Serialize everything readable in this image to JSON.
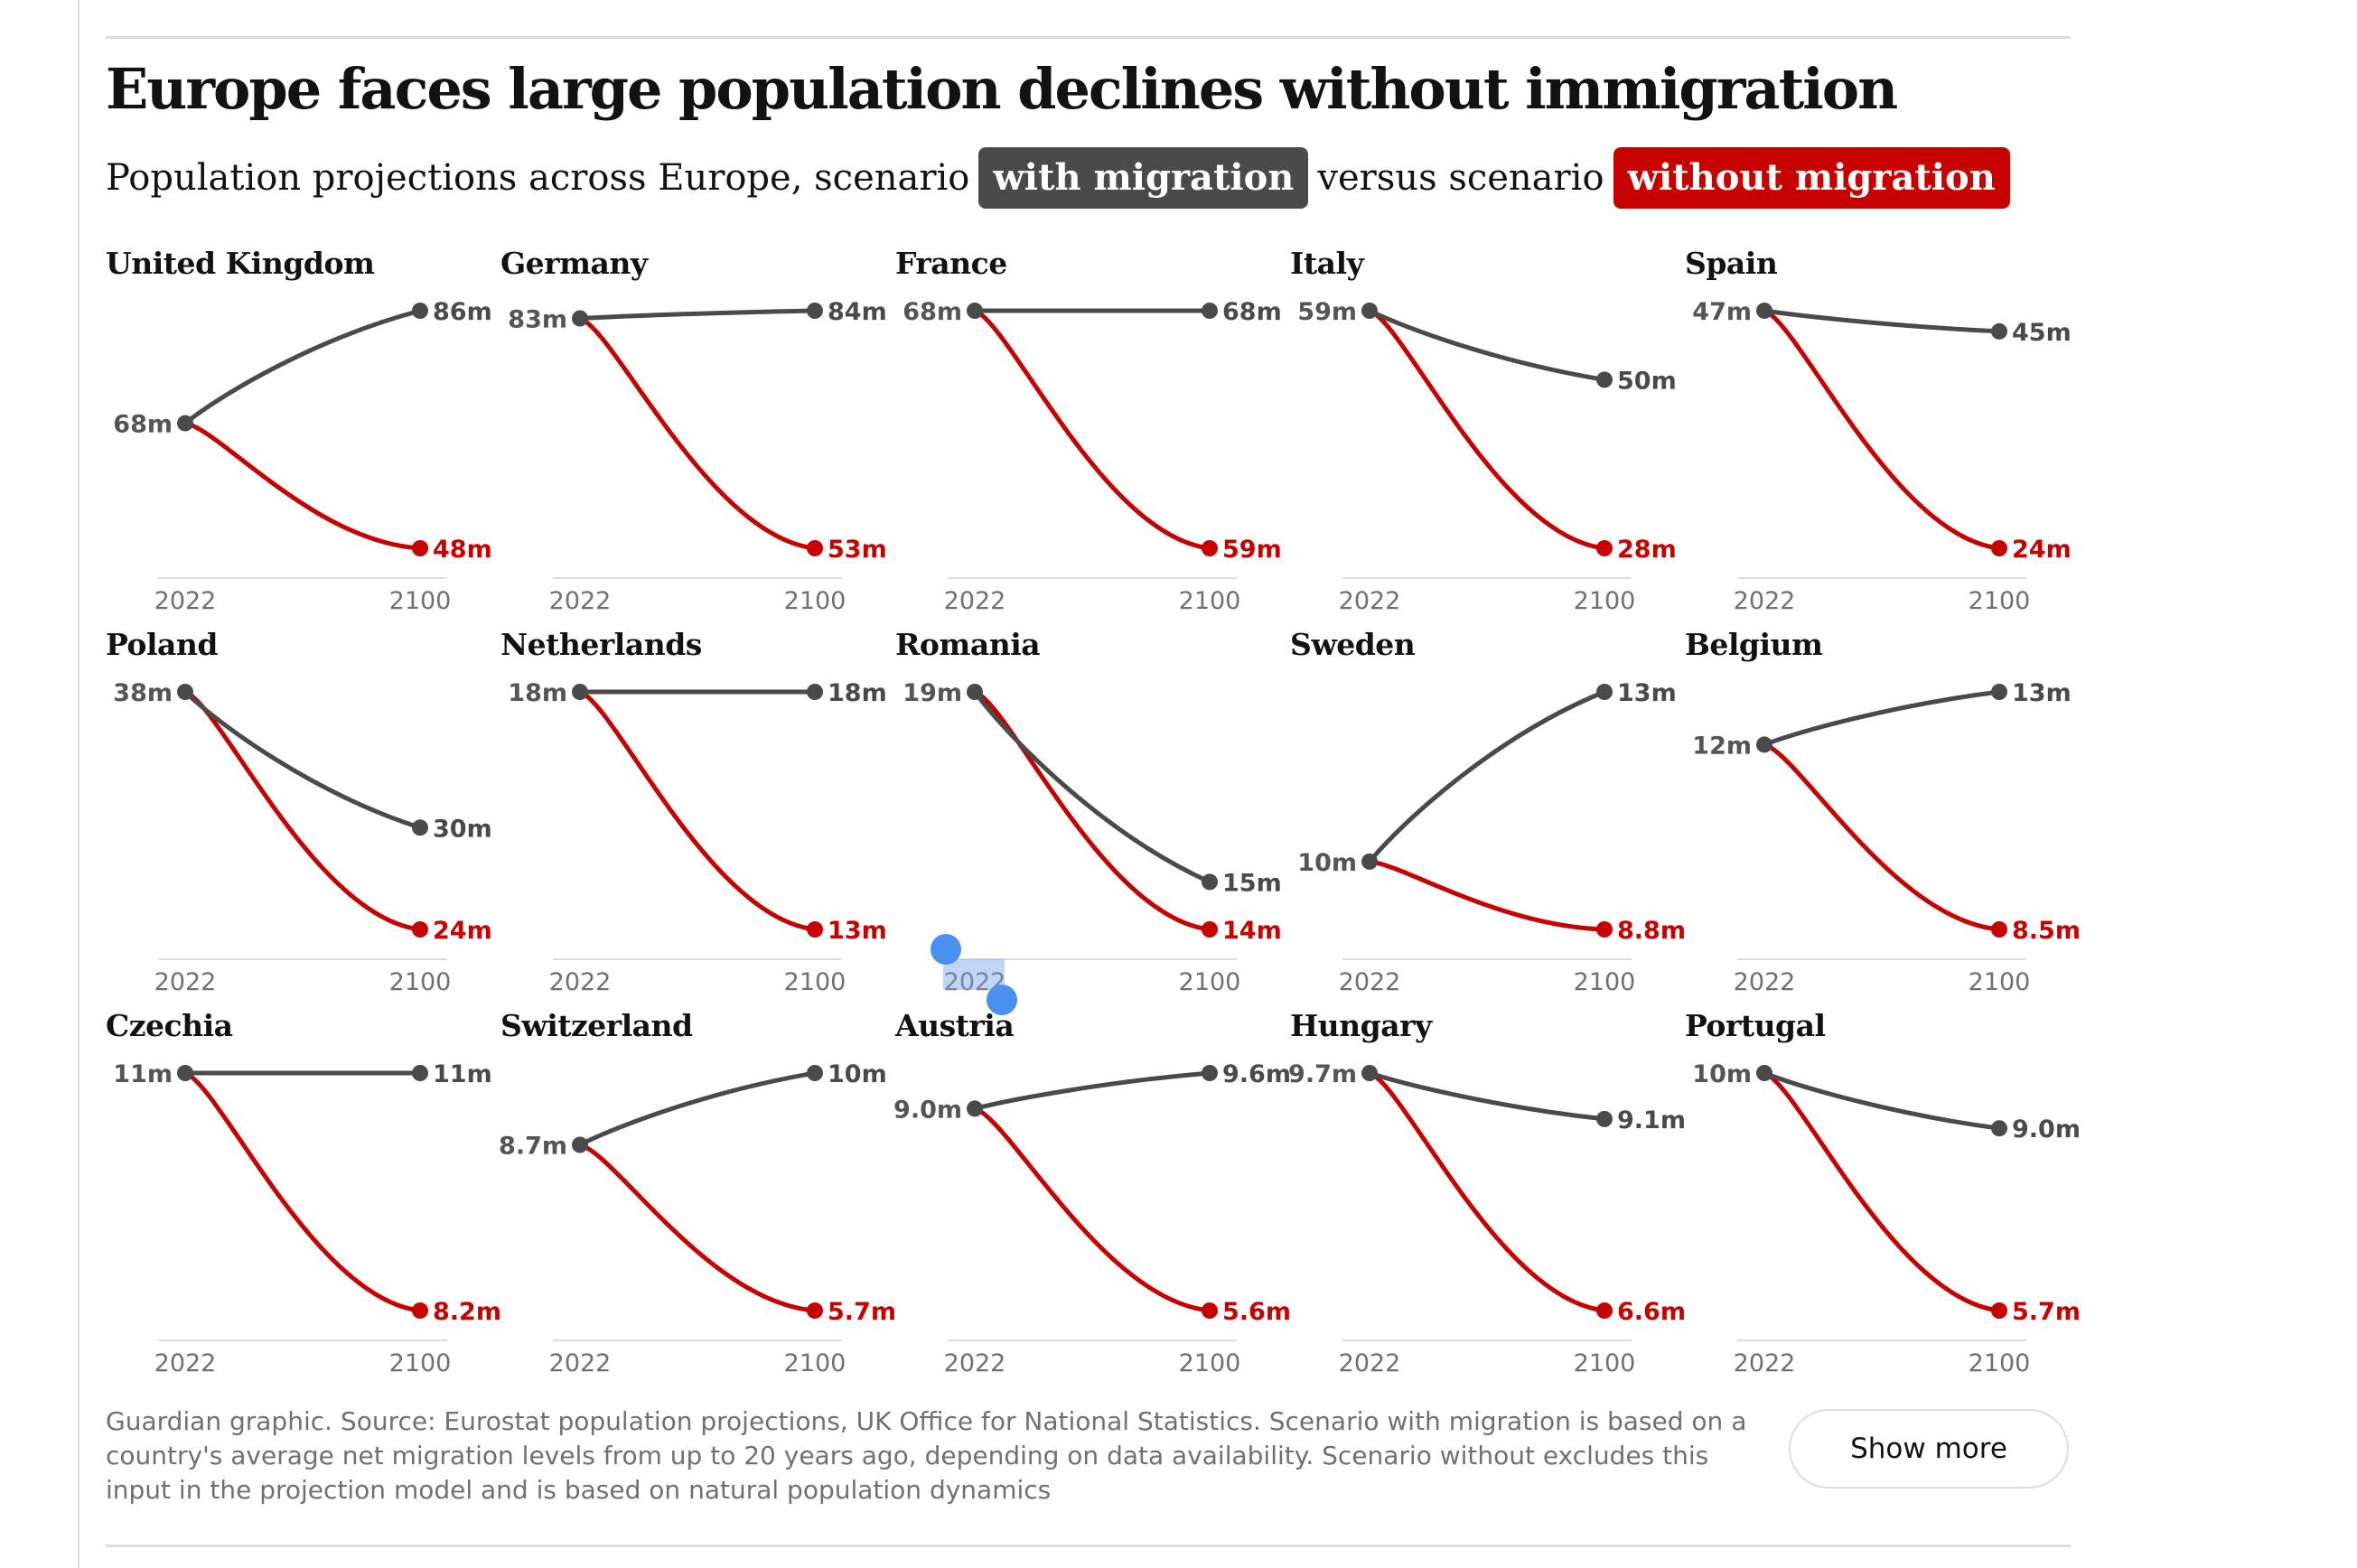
{
  "header": {
    "title": "Europe faces large population declines without immigration",
    "subtitle_prefix": "Population projections across Europe, scenario",
    "with_label": "with migration",
    "subtitle_mid": "versus scenario",
    "without_label": "without migration"
  },
  "colors": {
    "with": "#4a4a4a",
    "without": "#c70000",
    "axis": "#dcdcdc",
    "text_muted": "#707070"
  },
  "footer": {
    "note": "Guardian graphic. Source: Eurostat population projections, UK Office for National Statistics. Scenario with migration is based on a country's average net migration levels from up to 20 years ago, depending on data availability. Scenario without excludes this input in the projection model and is based on natural population dynamics",
    "show_more": "Show more"
  },
  "selection": {
    "selected_text": "2022"
  },
  "chart_data": [
    {
      "type": "line",
      "title": "United Kingdom",
      "x": [
        "2022",
        "2100"
      ],
      "series": [
        {
          "name": "with migration",
          "start": 68,
          "end": 86,
          "start_label": "68m",
          "end_label": "86m"
        },
        {
          "name": "without migration",
          "start": 68,
          "end": 48,
          "start_label": "68m",
          "end_label": "48m"
        }
      ]
    },
    {
      "type": "line",
      "title": "Germany",
      "x": [
        "2022",
        "2100"
      ],
      "series": [
        {
          "name": "with migration",
          "start": 83,
          "end": 84,
          "start_label": "83m",
          "end_label": "84m"
        },
        {
          "name": "without migration",
          "start": 83,
          "end": 53,
          "start_label": "83m",
          "end_label": "53m"
        }
      ]
    },
    {
      "type": "line",
      "title": "France",
      "x": [
        "2022",
        "2100"
      ],
      "series": [
        {
          "name": "with migration",
          "start": 68,
          "end": 68,
          "start_label": "68m",
          "end_label": "68m"
        },
        {
          "name": "without migration",
          "start": 68,
          "end": 59,
          "start_label": "68m",
          "end_label": "59m"
        }
      ]
    },
    {
      "type": "line",
      "title": "Italy",
      "x": [
        "2022",
        "2100"
      ],
      "series": [
        {
          "name": "with migration",
          "start": 59,
          "end": 50,
          "start_label": "59m",
          "end_label": "50m"
        },
        {
          "name": "without migration",
          "start": 59,
          "end": 28,
          "start_label": "59m",
          "end_label": "28m"
        }
      ]
    },
    {
      "type": "line",
      "title": "Spain",
      "x": [
        "2022",
        "2100"
      ],
      "series": [
        {
          "name": "with migration",
          "start": 47,
          "end": 45,
          "start_label": "47m",
          "end_label": "45m"
        },
        {
          "name": "without migration",
          "start": 47,
          "end": 24,
          "start_label": "47m",
          "end_label": "24m"
        }
      ]
    },
    {
      "type": "line",
      "title": "Poland",
      "x": [
        "2022",
        "2100"
      ],
      "series": [
        {
          "name": "with migration",
          "start": 38,
          "end": 30,
          "start_label": "38m",
          "end_label": "30m"
        },
        {
          "name": "without migration",
          "start": 38,
          "end": 24,
          "start_label": "38m",
          "end_label": "24m"
        }
      ]
    },
    {
      "type": "line",
      "title": "Netherlands",
      "x": [
        "2022",
        "2100"
      ],
      "series": [
        {
          "name": "with migration",
          "start": 18,
          "end": 18,
          "start_label": "18m",
          "end_label": "18m"
        },
        {
          "name": "without migration",
          "start": 18,
          "end": 13,
          "start_label": "18m",
          "end_label": "13m"
        }
      ]
    },
    {
      "type": "line",
      "title": "Romania",
      "x": [
        "2022",
        "2100"
      ],
      "series": [
        {
          "name": "with migration",
          "start": 19,
          "end": 15,
          "start_label": "19m",
          "end_label": "15m"
        },
        {
          "name": "without migration",
          "start": 19,
          "end": 14,
          "start_label": "19m",
          "end_label": "14m"
        }
      ]
    },
    {
      "type": "line",
      "title": "Sweden",
      "x": [
        "2022",
        "2100"
      ],
      "series": [
        {
          "name": "with migration",
          "start": 10,
          "end": 13,
          "start_label": "10m",
          "end_label": "13m"
        },
        {
          "name": "without migration",
          "start": 10,
          "end": 8.8,
          "start_label": "10m",
          "end_label": "8.8m"
        }
      ]
    },
    {
      "type": "line",
      "title": "Belgium",
      "x": [
        "2022",
        "2100"
      ],
      "series": [
        {
          "name": "with migration",
          "start": 12,
          "end": 13,
          "start_label": "12m",
          "end_label": "13m"
        },
        {
          "name": "without migration",
          "start": 12,
          "end": 8.5,
          "start_label": "12m",
          "end_label": "8.5m"
        }
      ]
    },
    {
      "type": "line",
      "title": "Czechia",
      "x": [
        "2022",
        "2100"
      ],
      "series": [
        {
          "name": "with migration",
          "start": 11,
          "end": 11,
          "start_label": "11m",
          "end_label": "11m"
        },
        {
          "name": "without migration",
          "start": 11,
          "end": 8.2,
          "start_label": "11m",
          "end_label": "8.2m"
        }
      ]
    },
    {
      "type": "line",
      "title": "Switzerland",
      "x": [
        "2022",
        "2100"
      ],
      "series": [
        {
          "name": "with migration",
          "start": 8.7,
          "end": 10,
          "start_label": "8.7m",
          "end_label": "10m"
        },
        {
          "name": "without migration",
          "start": 8.7,
          "end": 5.7,
          "start_label": "8.7m",
          "end_label": "5.7m"
        }
      ]
    },
    {
      "type": "line",
      "title": "Austria",
      "x": [
        "2022",
        "2100"
      ],
      "series": [
        {
          "name": "with migration",
          "start": 9.0,
          "end": 9.6,
          "start_label": "9.0m",
          "end_label": "9.6m"
        },
        {
          "name": "without migration",
          "start": 9.0,
          "end": 5.6,
          "start_label": "9.0m",
          "end_label": "5.6m"
        }
      ]
    },
    {
      "type": "line",
      "title": "Hungary",
      "x": [
        "2022",
        "2100"
      ],
      "series": [
        {
          "name": "with migration",
          "start": 9.7,
          "end": 9.1,
          "start_label": "9.7m",
          "end_label": "9.1m"
        },
        {
          "name": "without migration",
          "start": 9.7,
          "end": 6.6,
          "start_label": "9.7m",
          "end_label": "6.6m"
        }
      ]
    },
    {
      "type": "line",
      "title": "Portugal",
      "x": [
        "2022",
        "2100"
      ],
      "series": [
        {
          "name": "with migration",
          "start": 10,
          "end": 9.0,
          "start_label": "10m",
          "end_label": "9.0m"
        },
        {
          "name": "without migration",
          "start": 10,
          "end": 5.7,
          "start_label": "10m",
          "end_label": "5.7m"
        }
      ]
    }
  ]
}
